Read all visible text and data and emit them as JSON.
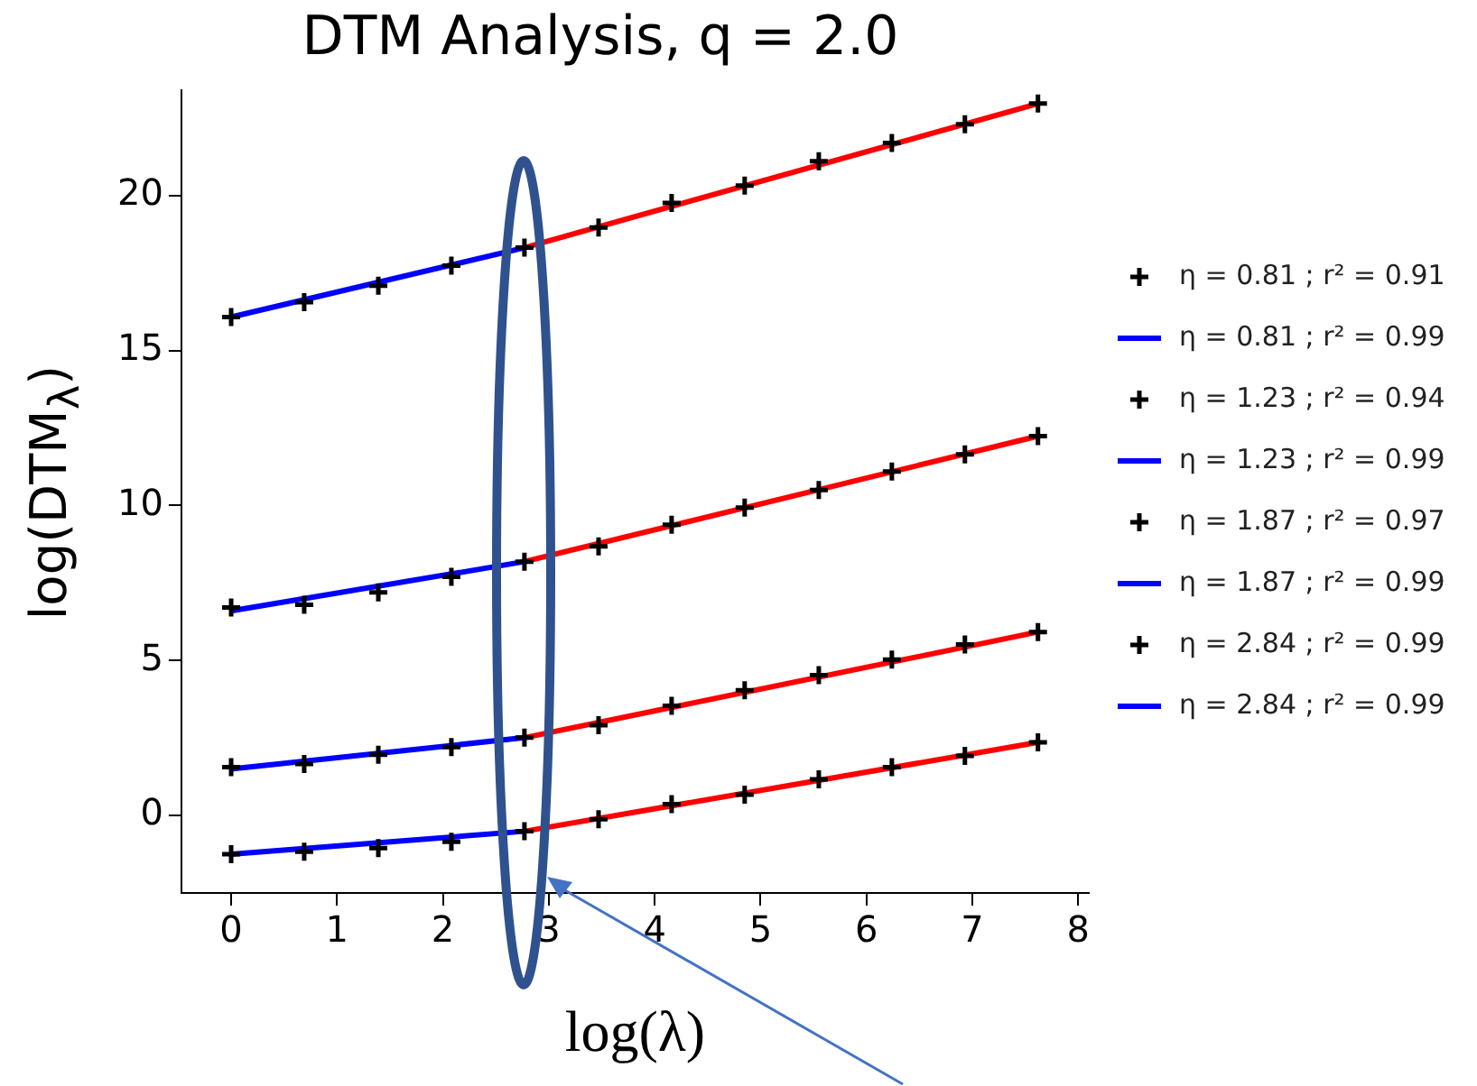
{
  "chart_data": {
    "type": "scatter",
    "title": "DTM Analysis, q = 2.0",
    "xlabel": "log(λ)",
    "ylabel": "log(DTM$_{λ}$)",
    "x": [
      0,
      0.69,
      1.39,
      2.08,
      2.77,
      3.47,
      4.16,
      4.85,
      5.55,
      6.24,
      6.93,
      7.62
    ],
    "xlim": [
      -0.47,
      8.1
    ],
    "xticks": [
      0,
      1,
      2,
      3,
      4,
      5,
      6,
      7,
      8
    ],
    "ylim": [
      -2.5,
      23.4
    ],
    "yticks": [
      0,
      5,
      10,
      15,
      20
    ],
    "legend": "right",
    "grid": false,
    "series": [
      {
        "name": "η = 0.81 ; r² = 0.91",
        "color": "#000000",
        "marker": "cross",
        "values": [
          16.08,
          16.56,
          17.09,
          17.74,
          18.32,
          18.97,
          19.76,
          20.32,
          21.11,
          21.7,
          22.3,
          22.97
        ]
      },
      {
        "name": "η = 0.81 ; r² = 0.99",
        "type": "line",
        "marker": "none",
        "color": "#0000ff",
        "x": [
          0,
          2.77
        ],
        "values": [
          16.08,
          18.32
        ]
      },
      {
        "type": "line",
        "marker": "none",
        "color": "#ff0000",
        "x": [
          2.77,
          7.62
        ],
        "values": [
          18.32,
          22.97
        ]
      },
      {
        "name": "η = 1.23 ; r² = 0.94",
        "color": "#000000",
        "marker": "cross",
        "values": [
          6.71,
          6.8,
          7.2,
          7.7,
          8.19,
          8.68,
          9.38,
          9.93,
          10.5,
          11.1,
          11.65,
          12.24
        ]
      },
      {
        "name": "η = 1.23 ; r² = 0.99",
        "type": "line",
        "marker": "none",
        "color": "#0000ff",
        "x": [
          0,
          2.77
        ],
        "values": [
          6.6,
          8.19
        ]
      },
      {
        "type": "line",
        "marker": "none",
        "color": "#ff0000",
        "x": [
          2.77,
          7.62
        ],
        "values": [
          8.19,
          12.24
        ]
      },
      {
        "name": "η = 1.87 ; r² = 0.97",
        "color": "#000000",
        "marker": "cross",
        "values": [
          1.56,
          1.66,
          1.96,
          2.21,
          2.51,
          2.91,
          3.54,
          4.04,
          4.53,
          5.03,
          5.52,
          5.92
        ]
      },
      {
        "name": "η = 1.87 ; r² = 0.99",
        "type": "line",
        "marker": "none",
        "color": "#0000ff",
        "x": [
          0,
          2.77
        ],
        "values": [
          1.5,
          2.51
        ]
      },
      {
        "type": "line",
        "marker": "none",
        "color": "#ff0000",
        "x": [
          2.77,
          7.62
        ],
        "values": [
          2.51,
          5.92
        ]
      },
      {
        "name": "η = 2.84 ; r² = 0.99",
        "color": "#000000",
        "marker": "cross",
        "values": [
          -1.25,
          -1.17,
          -1.05,
          -0.85,
          -0.51,
          -0.12,
          0.37,
          0.67,
          1.17,
          1.56,
          1.92,
          2.36
        ]
      },
      {
        "name": "η = 2.84 ; r² = 0.99",
        "type": "line",
        "marker": "none",
        "color": "#0000ff",
        "x": [
          0,
          2.77
        ],
        "values": [
          -1.25,
          -0.51
        ]
      },
      {
        "type": "line",
        "marker": "none",
        "color": "#ff0000",
        "x": [
          2.77,
          7.62
        ],
        "values": [
          -0.51,
          2.36
        ]
      }
    ]
  }
}
